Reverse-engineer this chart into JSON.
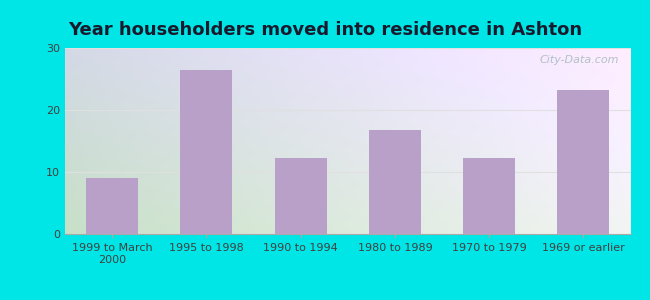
{
  "title": "Year householders moved into residence in Ashton",
  "categories": [
    "1999 to March\n2000",
    "1995 to 1998",
    "1990 to 1994",
    "1980 to 1989",
    "1970 to 1979",
    "1969 or earlier"
  ],
  "values": [
    9,
    26.5,
    12.2,
    16.7,
    12.2,
    23.3
  ],
  "bar_color": "#b8a0c8",
  "background_outer": "#00e5e5",
  "gradient_topleft": "#c8eec8",
  "gradient_topright": "#f0f0ff",
  "gradient_bottomleft": "#a8dca8",
  "gradient_bottomright": "#e8e8ff",
  "ylim": [
    0,
    30
  ],
  "yticks": [
    0,
    10,
    20,
    30
  ],
  "title_fontsize": 13,
  "tick_fontsize": 8,
  "watermark": "City-Data.com",
  "grid_color": "#e0e0e0"
}
